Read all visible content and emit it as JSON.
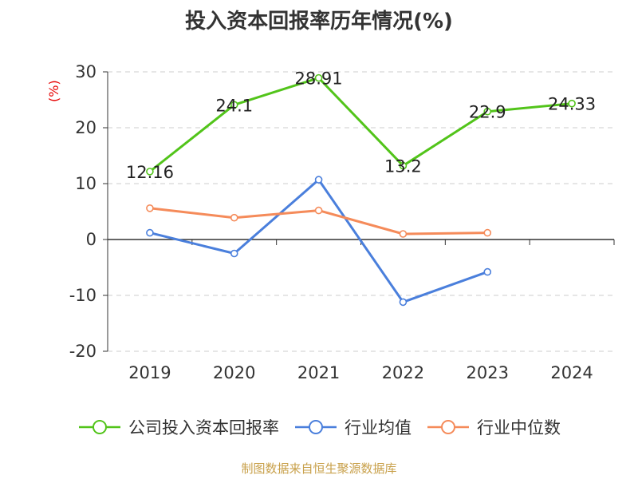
{
  "title": "投入资本回报率历年情况(%)",
  "unit_label": "(%)",
  "source": "制图数据来自恒生聚源数据库",
  "colors": {
    "company": "#52c41a",
    "industry_avg": "#4a7fdc",
    "industry_median": "#f58b5a",
    "unit": "#e60000",
    "source": "#c8a04a"
  },
  "chart_data": {
    "type": "line",
    "title": "投入资本回报率历年情况(%)",
    "xlabel": "",
    "ylabel": "(%)",
    "categories": [
      "2019",
      "2020",
      "2021",
      "2022",
      "2023",
      "2024"
    ],
    "ylim": [
      -20,
      30
    ],
    "yticks": [
      30,
      20,
      10,
      0,
      -10,
      -20
    ],
    "ytick_labels": [
      "30",
      "20",
      "10",
      "0",
      "-10",
      "-20"
    ],
    "grid": true,
    "legend_position": "bottom",
    "series": [
      {
        "name": "公司投入资本回报率",
        "values": [
          12.16,
          24.1,
          28.91,
          13.2,
          22.9,
          24.33
        ],
        "labels": [
          "12.16",
          "24.1",
          "28.91",
          "13.2",
          "22.9",
          "24.33"
        ],
        "color": "#52c41a"
      },
      {
        "name": "行业均值",
        "values": [
          1.2,
          -2.5,
          10.7,
          -11.2,
          -5.8,
          null
        ],
        "color": "#4a7fdc"
      },
      {
        "name": "行业中位数",
        "values": [
          5.6,
          3.9,
          5.2,
          1.0,
          1.2,
          null
        ],
        "color": "#f58b5a"
      }
    ]
  },
  "legend": [
    {
      "label": "公司投入资本回报率",
      "color": "#52c41a"
    },
    {
      "label": "行业均值",
      "color": "#4a7fdc"
    },
    {
      "label": "行业中位数",
      "color": "#f58b5a"
    }
  ]
}
